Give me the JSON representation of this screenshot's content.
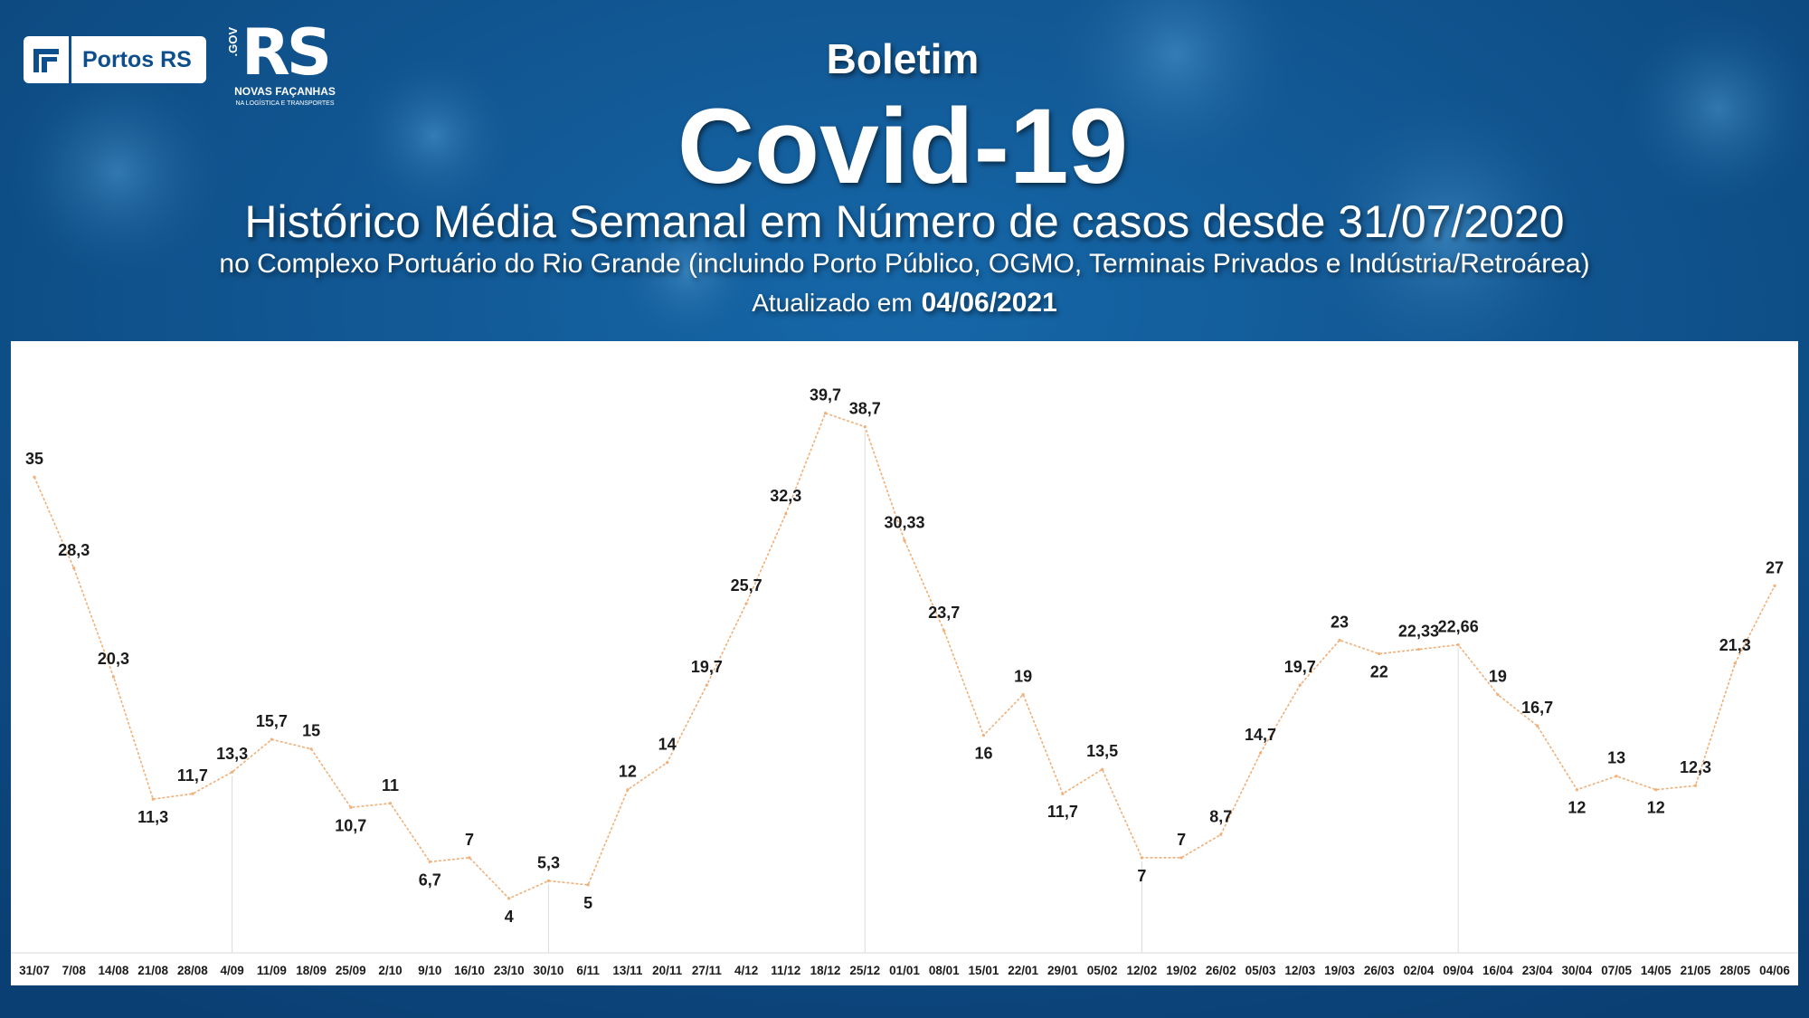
{
  "header": {
    "kicker": "Boletim",
    "title": "Covid-19",
    "subtitle": "Histórico Média Semanal em Número de casos desde 31/07/2020",
    "description": "no Complexo Portuário do Rio Grande (incluindo Porto Público, OGMO, Terminais Privados e Indústria/Retroárea)",
    "updated_label": "Atualizado em",
    "updated_date": "04/06/2021"
  },
  "logos": {
    "portos_name": "Portos RS",
    "rs_gov": ".GOV",
    "rs_word": "RS",
    "rs_tagline": "NOVAS FAÇANHAS",
    "rs_subline": "NA LOGÍSTICA E TRANSPORTES"
  },
  "colors": {
    "background": "#0d4f8c",
    "line": "#f0b07a",
    "plot_background": "#ffffff"
  },
  "chart_data": {
    "type": "line",
    "title": "",
    "xlabel": "",
    "ylabel": "",
    "ylim": [
      0,
      45
    ],
    "grid": false,
    "legend": "none",
    "categories": [
      "31/07",
      "7/08",
      "14/08",
      "21/08",
      "28/08",
      "4/09",
      "11/09",
      "18/09",
      "25/09",
      "2/10",
      "9/10",
      "16/10",
      "23/10",
      "30/10",
      "6/11",
      "13/11",
      "20/11",
      "27/11",
      "4/12",
      "11/12",
      "18/12",
      "25/12",
      "01/01",
      "08/01",
      "15/01",
      "22/01",
      "29/01",
      "05/02",
      "12/02",
      "19/02",
      "26/02",
      "05/03",
      "12/03",
      "19/03",
      "26/03",
      "02/04",
      "09/04",
      "16/04",
      "23/04",
      "30/04",
      "07/05",
      "14/05",
      "21/05",
      "28/05",
      "04/06"
    ],
    "values": [
      35,
      28.3,
      20.3,
      11.3,
      11.7,
      13.3,
      15.7,
      15,
      10.7,
      11,
      6.7,
      7,
      4,
      5.3,
      5,
      12,
      14,
      19.7,
      25.7,
      32.3,
      39.7,
      38.7,
      30.33,
      23.7,
      16,
      19,
      11.7,
      13.5,
      7,
      7,
      8.7,
      14.7,
      19.7,
      23,
      22,
      22.33,
      22.66,
      19,
      16.7,
      12,
      13,
      12,
      12.3,
      21.3,
      27
    ],
    "value_labels": [
      "35",
      "28,3",
      "20,3",
      "11,3",
      "11,7",
      "13,3",
      "15,7",
      "15",
      "10,7",
      "11",
      "6,7",
      "7",
      "4",
      "5,3",
      "5",
      "12",
      "14",
      "19,7",
      "25,7",
      "32,3",
      "39,7",
      "38,7",
      "30,33",
      "23,7",
      "16",
      "19",
      "11,7",
      "13,5",
      "7",
      "7",
      "8,7",
      "14,7",
      "19,7",
      "23",
      "22",
      "22,33",
      "22,66",
      "19",
      "16,7",
      "12",
      "13",
      "12",
      "12,3",
      "21,3",
      "27"
    ],
    "marker_lines_at": [
      "4/09",
      "30/10",
      "25/12",
      "12/02",
      "09/04"
    ]
  }
}
